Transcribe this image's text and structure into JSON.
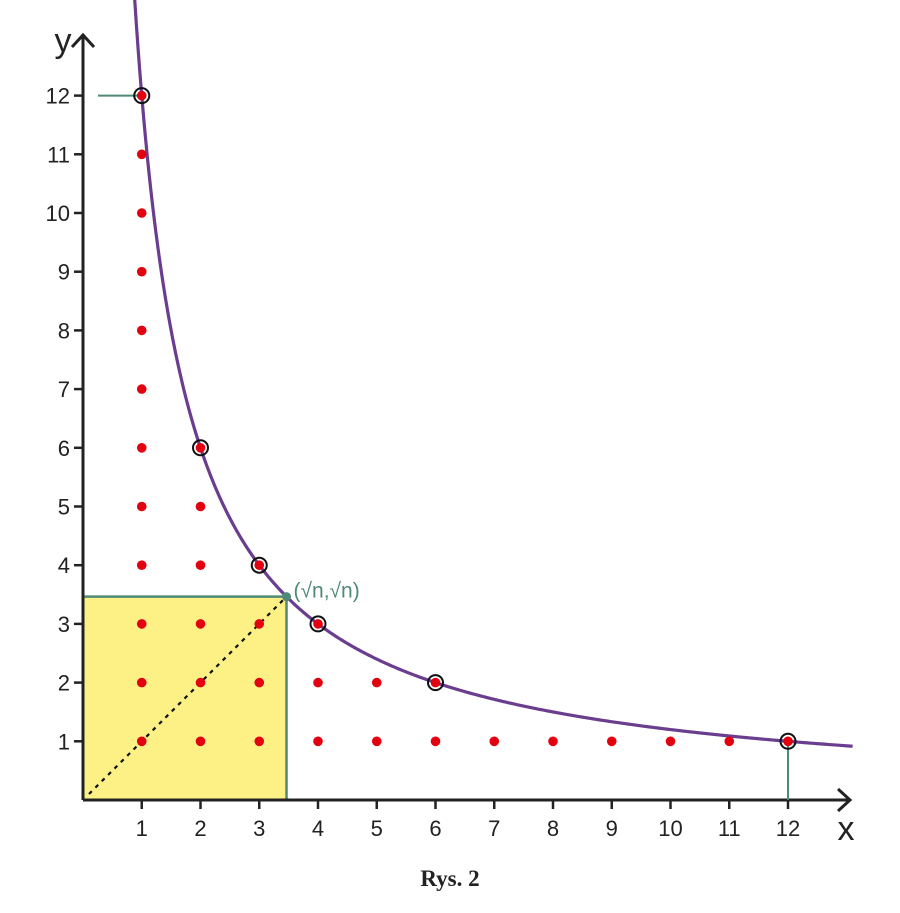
{
  "chart_data": {
    "type": "scatter",
    "title": "",
    "xlabel": "x",
    "ylabel": "y",
    "xlim": [
      0,
      13.1
    ],
    "ylim": [
      0,
      12.8
    ],
    "x_ticks": [
      {
        "value": 1,
        "label": "1"
      },
      {
        "value": 2,
        "label": "2"
      },
      {
        "value": 3,
        "label": "3"
      },
      {
        "value": 4,
        "label": "4"
      },
      {
        "value": 5,
        "label": "5"
      },
      {
        "value": 6,
        "label": "6"
      },
      {
        "value": 7,
        "label": "7"
      },
      {
        "value": 8,
        "label": "8"
      },
      {
        "value": 9,
        "label": "9"
      },
      {
        "value": 10,
        "label": "10"
      },
      {
        "value": 11,
        "label": "11"
      },
      {
        "value": 12,
        "label": "12"
      }
    ],
    "y_ticks": [
      {
        "value": 1,
        "label": "1"
      },
      {
        "value": 2,
        "label": "2"
      },
      {
        "value": 3,
        "label": "3"
      },
      {
        "value": 4,
        "label": "4"
      },
      {
        "value": 5,
        "label": "5"
      },
      {
        "value": 6,
        "label": "6"
      },
      {
        "value": 7,
        "label": "7"
      },
      {
        "value": 8,
        "label": "8"
      },
      {
        "value": 9,
        "label": "9"
      },
      {
        "value": 10,
        "label": "10"
      },
      {
        "value": 11,
        "label": "11"
      },
      {
        "value": 12,
        "label": "12"
      }
    ],
    "curve": {
      "equation": "y = 12/x",
      "n": 12,
      "x_range": [
        0.88,
        13.1
      ],
      "color": "#6a3d8f"
    },
    "lattice_points": {
      "color": "#e3000f",
      "points": [
        [
          1,
          1
        ],
        [
          1,
          2
        ],
        [
          1,
          3
        ],
        [
          1,
          4
        ],
        [
          1,
          5
        ],
        [
          1,
          6
        ],
        [
          1,
          7
        ],
        [
          1,
          8
        ],
        [
          1,
          9
        ],
        [
          1,
          10
        ],
        [
          1,
          11
        ],
        [
          1,
          12
        ],
        [
          2,
          1
        ],
        [
          2,
          2
        ],
        [
          2,
          3
        ],
        [
          2,
          4
        ],
        [
          2,
          5
        ],
        [
          2,
          6
        ],
        [
          3,
          1
        ],
        [
          3,
          2
        ],
        [
          3,
          3
        ],
        [
          3,
          4
        ],
        [
          4,
          1
        ],
        [
          4,
          2
        ],
        [
          4,
          3
        ],
        [
          5,
          1
        ],
        [
          5,
          2
        ],
        [
          6,
          1
        ],
        [
          6,
          2
        ],
        [
          7,
          1
        ],
        [
          8,
          1
        ],
        [
          9,
          1
        ],
        [
          10,
          1
        ],
        [
          11,
          1
        ],
        [
          12,
          1
        ]
      ]
    },
    "divisor_points": [
      [
        1,
        12
      ],
      [
        2,
        6
      ],
      [
        3,
        4
      ],
      [
        4,
        3
      ],
      [
        6,
        2
      ],
      [
        12,
        1
      ]
    ],
    "square": {
      "side": 3.464,
      "fill": "#fdf186",
      "border": "#4f8a78"
    },
    "diagonal": {
      "from": [
        0,
        0
      ],
      "to": [
        3.464,
        3.464
      ]
    },
    "sqrt_point": {
      "x": 3.464,
      "y": 3.464,
      "label": "(√n,√n)",
      "color": "#4f8a78"
    }
  },
  "caption": "Rys. 2"
}
